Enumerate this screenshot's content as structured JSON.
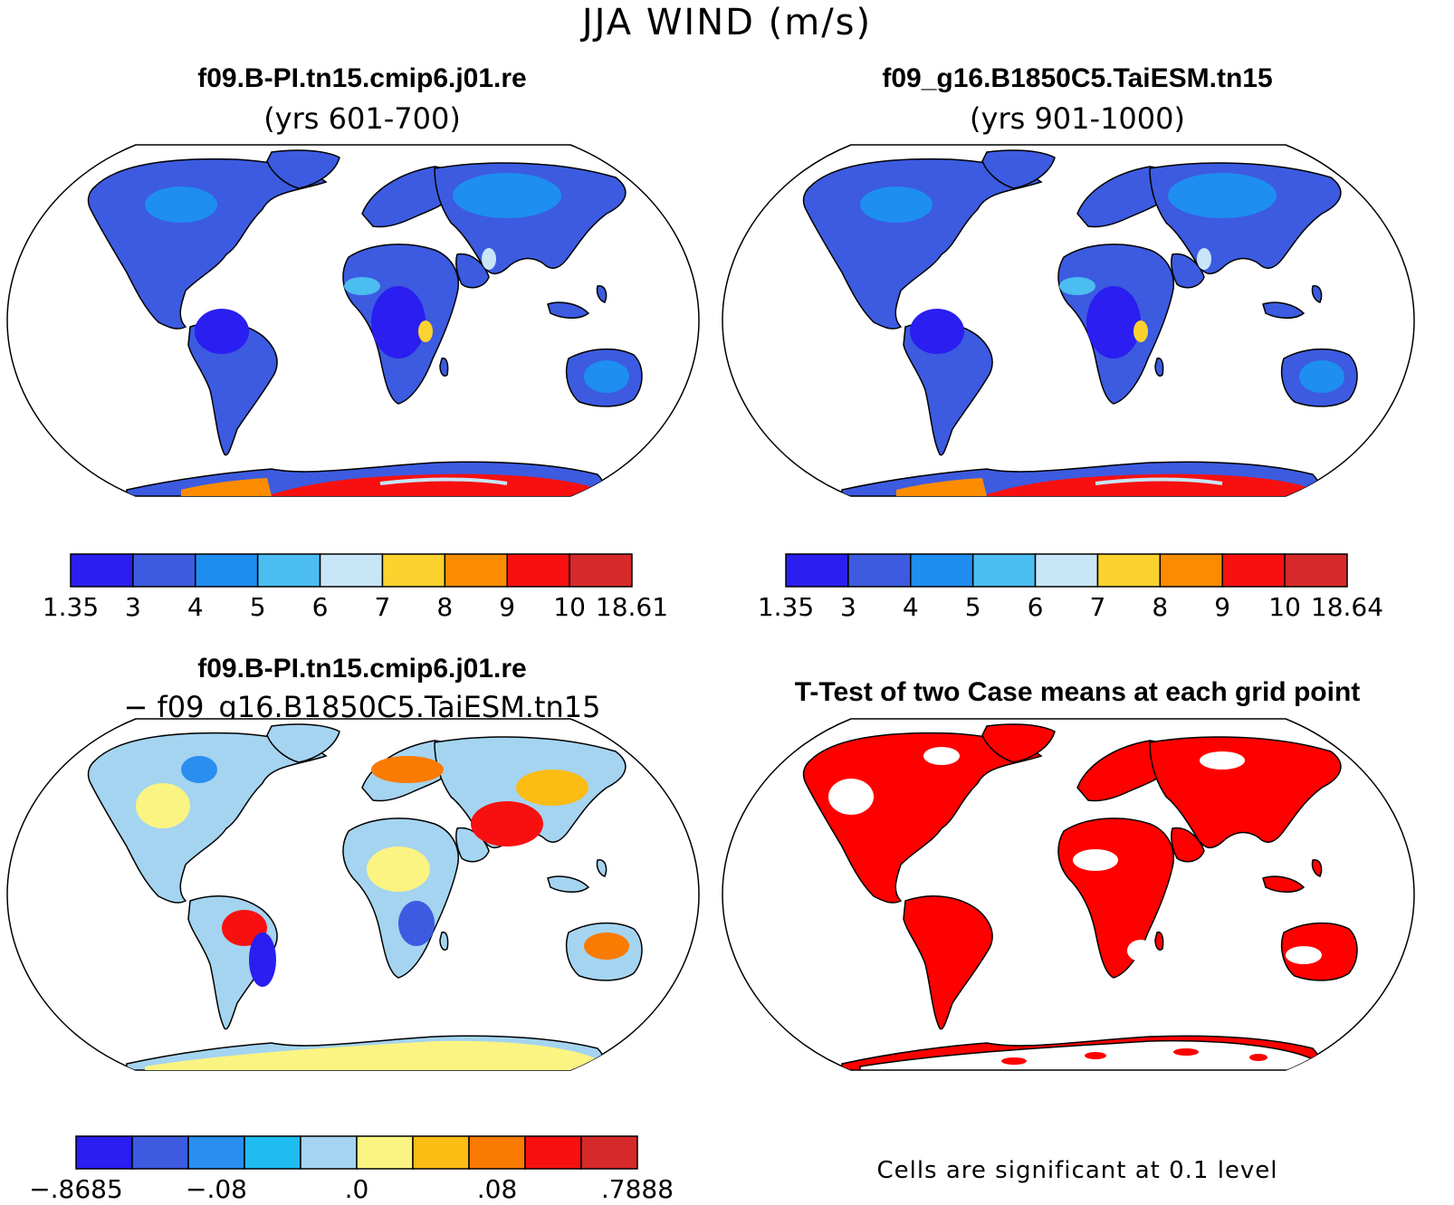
{
  "title": "JJA WIND (m/s)",
  "panels": [
    {
      "id": "case1",
      "title": "f09.B-PI.tn15.cmip6.j01.re",
      "subtitle": "(yrs 601-700)",
      "colorbar": {
        "colors": [
          "#2a1ef0",
          "#3c5be0",
          "#1e8ef0",
          "#4cbdf0",
          "#c8e6f8",
          "#fbd22e",
          "#fb8c00",
          "#f81010",
          "#d62a2a"
        ],
        "labels": [
          "1.35",
          "3",
          "4",
          "5",
          "6",
          "7",
          "8",
          "9",
          "10",
          "18.61"
        ]
      }
    },
    {
      "id": "case2",
      "title": "f09_g16.B1850C5.TaiESM.tn15",
      "subtitle": "(yrs 901-1000)",
      "colorbar": {
        "colors": [
          "#2a1ef0",
          "#3c5be0",
          "#1e8ef0",
          "#4cbdf0",
          "#c8e6f8",
          "#fbd22e",
          "#fb8c00",
          "#f81010",
          "#d62a2a"
        ],
        "labels": [
          "1.35",
          "3",
          "4",
          "5",
          "6",
          "7",
          "8",
          "9",
          "10",
          "18.64"
        ]
      }
    },
    {
      "id": "diff",
      "title": "f09.B-PI.tn15.cmip6.j01.re",
      "subtitle": "− f09_g16.B1850C5.TaiESM.tn15",
      "colorbar": {
        "colors": [
          "#2a1ef0",
          "#3c5be0",
          "#2a8ef0",
          "#1ebcf0",
          "#a4d4f0",
          "#fbf482",
          "#fbbc14",
          "#fb7a00",
          "#f81010",
          "#d62a2a"
        ],
        "labels": [
          "−.8685",
          "−.08",
          ".0",
          ".08",
          ".7888"
        ]
      }
    },
    {
      "id": "ttest",
      "title": "T-Test of two Case means at each grid point",
      "footnote": "Cells are significant at 0.1 level"
    }
  ]
}
